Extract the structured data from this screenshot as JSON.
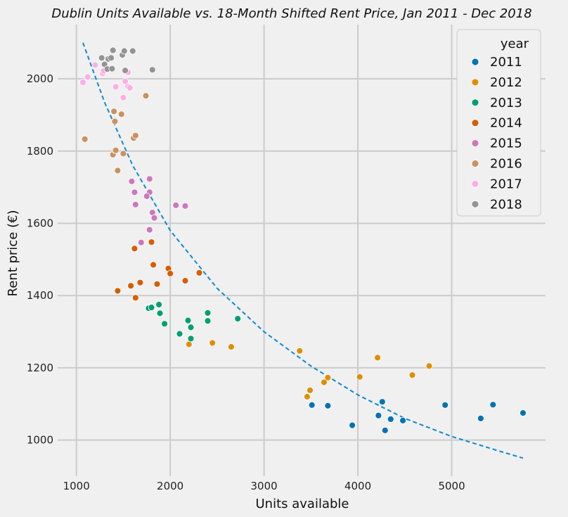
{
  "chart_data": {
    "type": "scatter",
    "title": "Dublin Units Available vs. 18-Month Shifted Rent Price, Jan 2011 - Dec 2018",
    "xlabel": "Units available",
    "ylabel": "Rent price (€)",
    "xlim": [
      800,
      6000
    ],
    "ylim": [
      900,
      2150
    ],
    "xticks": [
      1000,
      2000,
      3000,
      4000,
      5000
    ],
    "yticks": [
      1000,
      1200,
      1400,
      1600,
      1800,
      2000
    ],
    "grid": true,
    "legend": {
      "title": "year",
      "position": "top-right"
    },
    "background_color": "#f0f0f0",
    "grid_color": "#cbcbcb",
    "series": [
      {
        "name": "2011",
        "color": "#0173b2",
        "points": [
          [
            3510,
            1097
          ],
          [
            3680,
            1095
          ],
          [
            3940,
            1041
          ],
          [
            4220,
            1068
          ],
          [
            4260,
            1106
          ],
          [
            4290,
            1027
          ],
          [
            4350,
            1058
          ],
          [
            4480,
            1054
          ],
          [
            4930,
            1097
          ],
          [
            5310,
            1060
          ],
          [
            5440,
            1098
          ],
          [
            5760,
            1075
          ]
        ]
      },
      {
        "name": "2012",
        "color": "#de8f05",
        "points": [
          [
            2200,
            1265
          ],
          [
            2450,
            1269
          ],
          [
            2650,
            1258
          ],
          [
            3380,
            1247
          ],
          [
            3460,
            1120
          ],
          [
            3490,
            1138
          ],
          [
            3640,
            1160
          ],
          [
            3680,
            1173
          ],
          [
            4020,
            1175
          ],
          [
            4210,
            1228
          ],
          [
            4580,
            1180
          ],
          [
            4760,
            1205
          ]
        ]
      },
      {
        "name": "2013",
        "color": "#029e73",
        "points": [
          [
            1770,
            1365
          ],
          [
            1800,
            1367
          ],
          [
            1880,
            1375
          ],
          [
            1890,
            1351
          ],
          [
            1940,
            1322
          ],
          [
            2100,
            1294
          ],
          [
            2190,
            1331
          ],
          [
            2220,
            1312
          ],
          [
            2220,
            1281
          ],
          [
            2400,
            1352
          ],
          [
            2400,
            1330
          ],
          [
            2720,
            1336
          ]
        ]
      },
      {
        "name": "2014",
        "color": "#d55e00",
        "points": [
          [
            1440,
            1413
          ],
          [
            1580,
            1427
          ],
          [
            1620,
            1530
          ],
          [
            1630,
            1394
          ],
          [
            1680,
            1436
          ],
          [
            1800,
            1548
          ],
          [
            1820,
            1485
          ],
          [
            1860,
            1432
          ],
          [
            1980,
            1475
          ],
          [
            2000,
            1461
          ],
          [
            2160,
            1441
          ],
          [
            2310,
            1463
          ]
        ]
      },
      {
        "name": "2015",
        "color": "#cc78bc",
        "points": [
          [
            1690,
            1547
          ],
          [
            1780,
            1582
          ],
          [
            1810,
            1630
          ],
          [
            1830,
            1615
          ],
          [
            1630,
            1652
          ],
          [
            1780,
            1686
          ],
          [
            1620,
            1686
          ],
          [
            1750,
            1675
          ],
          [
            2060,
            1650
          ],
          [
            2160,
            1648
          ],
          [
            1780,
            1723
          ],
          [
            1590,
            1716
          ]
        ]
      },
      {
        "name": "2016",
        "color": "#ca9161",
        "points": [
          [
            1090,
            1833
          ],
          [
            1390,
            1790
          ],
          [
            1410,
            1802
          ],
          [
            1440,
            1746
          ],
          [
            1500,
            1793
          ],
          [
            1610,
            1836
          ],
          [
            1630,
            1843
          ],
          [
            1400,
            1910
          ],
          [
            1480,
            1902
          ],
          [
            1410,
            1882
          ],
          [
            1740,
            1953
          ],
          [
            1420,
            1802
          ]
        ]
      },
      {
        "name": "2017",
        "color": "#fbafe4",
        "points": [
          [
            1070,
            1990
          ],
          [
            1120,
            2005
          ],
          [
            1200,
            2038
          ],
          [
            1280,
            2015
          ],
          [
            1290,
            2022
          ],
          [
            1420,
            1978
          ],
          [
            1500,
            1948
          ],
          [
            1520,
            1992
          ],
          [
            1550,
            1979
          ],
          [
            1570,
            1975
          ],
          [
            1550,
            2018
          ],
          [
            1520,
            1993
          ]
        ]
      },
      {
        "name": "2018",
        "color": "#949494",
        "points": [
          [
            1270,
            2058
          ],
          [
            1300,
            2040
          ],
          [
            1330,
            2027
          ],
          [
            1340,
            2055
          ],
          [
            1370,
            2058
          ],
          [
            1380,
            2028
          ],
          [
            1390,
            2079
          ],
          [
            1490,
            2066
          ],
          [
            1510,
            2077
          ],
          [
            1520,
            2023
          ],
          [
            1600,
            2077
          ],
          [
            1810,
            2025
          ]
        ]
      }
    ],
    "trend_line": {
      "style": "dashed",
      "color": "#0a8bd1",
      "points": [
        [
          1070,
          2100
        ],
        [
          1300,
          1935
        ],
        [
          1600,
          1760
        ],
        [
          2000,
          1580
        ],
        [
          2500,
          1420
        ],
        [
          3000,
          1300
        ],
        [
          3500,
          1205
        ],
        [
          4000,
          1125
        ],
        [
          4500,
          1060
        ],
        [
          5000,
          1010
        ],
        [
          5500,
          970
        ],
        [
          5760,
          950
        ]
      ]
    }
  }
}
